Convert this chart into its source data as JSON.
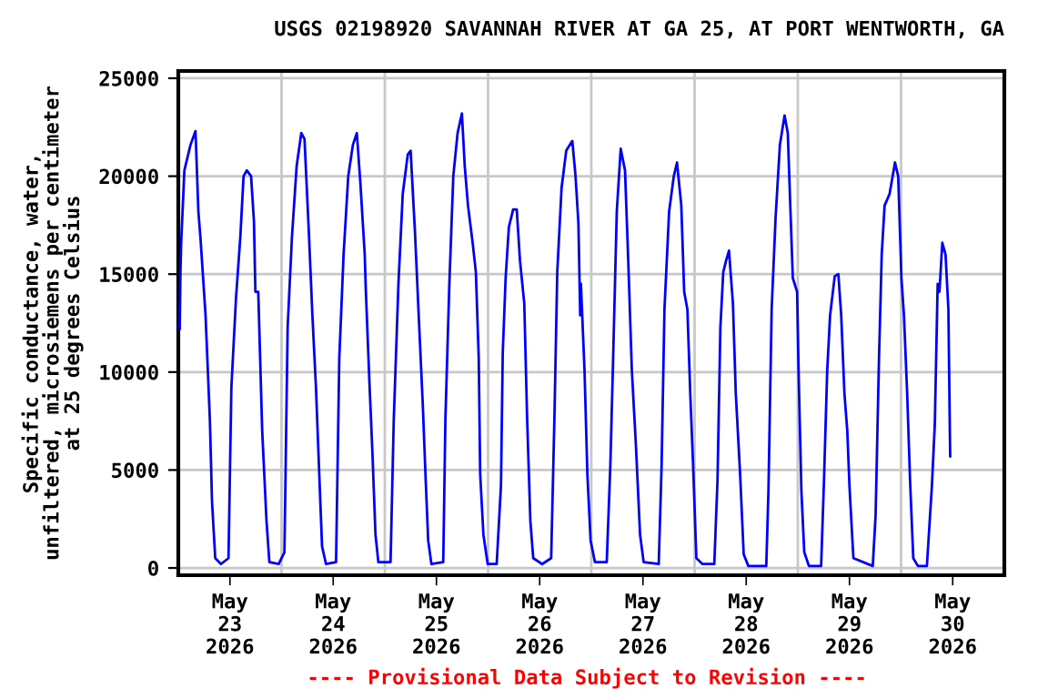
{
  "chart_data": {
    "type": "line",
    "title": "USGS 02198920 SAVANNAH RIVER AT GA 25, AT PORT WENTWORTH, GA",
    "ylabel": "Specific conductance, water,\nunfiltered, microsiemens per centimeter\nat 25 degrees Celsius",
    "annotations": [
      "---- Provisional Data Subject to Revision ----"
    ],
    "xlim": [
      "2026-05-23T00:00",
      "2026-05-31T00:00"
    ],
    "xticks": [
      {
        "value": "2026-05-23T12:00",
        "label": "May\n23\n2026"
      },
      {
        "value": "2026-05-24T12:00",
        "label": "May\n24\n2026"
      },
      {
        "value": "2026-05-25T12:00",
        "label": "May\n25\n2026"
      },
      {
        "value": "2026-05-26T12:00",
        "label": "May\n26\n2026"
      },
      {
        "value": "2026-05-27T12:00",
        "label": "May\n27\n2026"
      },
      {
        "value": "2026-05-28T12:00",
        "label": "May\n28\n2026"
      },
      {
        "value": "2026-05-29T12:00",
        "label": "May\n29\n2026"
      },
      {
        "value": "2026-05-30T12:00",
        "label": "May\n30\n2026"
      },
      {
        "value": "2026-05-24T00:00",
        "label": null
      },
      {
        "value": "2026-05-25T00:00",
        "label": null
      },
      {
        "value": "2026-05-26T00:00",
        "label": null
      },
      {
        "value": "2026-05-27T00:00",
        "label": null
      },
      {
        "value": "2026-05-28T00:00",
        "label": null
      },
      {
        "value": "2026-05-29T00:00",
        "label": null
      },
      {
        "value": "2026-05-30T00:00",
        "label": null
      }
    ],
    "ylim": [
      -370,
      25370
    ],
    "yticks": [
      0,
      5000,
      10000,
      15000,
      20000,
      25000
    ],
    "grid": true,
    "legend": false,
    "marker": "none",
    "line_style": "solid",
    "series": [
      {
        "color": "#0000ff",
        "x": [
          "2026-05-23T00:20",
          "2026-05-23T00:30",
          "2026-05-23T00:40",
          "2026-05-23T01:25",
          "2026-05-23T02:50",
          "2026-05-23T04:00",
          "2026-05-23T04:40",
          "2026-05-23T05:10",
          "2026-05-23T06:20",
          "2026-05-23T07:20",
          "2026-05-23T07:50",
          "2026-05-23T08:35",
          "2026-05-23T09:55",
          "2026-05-23T11:40",
          "2026-05-23T12:20",
          "2026-05-23T13:25",
          "2026-05-23T14:25",
          "2026-05-23T15:10",
          "2026-05-23T15:55",
          "2026-05-23T16:55",
          "2026-05-23T17:35",
          "2026-05-23T17:55",
          "2026-05-23T18:35",
          "2026-05-23T19:30",
          "2026-05-23T20:30",
          "2026-05-23T21:10",
          "2026-05-23T23:20",
          "2026-05-24T00:40",
          "2026-05-24T01:25",
          "2026-05-24T02:25",
          "2026-05-24T03:30",
          "2026-05-24T04:35",
          "2026-05-24T05:20",
          "2026-05-24T06:20",
          "2026-05-24T07:10",
          "2026-05-24T08:00",
          "2026-05-24T08:55",
          "2026-05-24T09:25",
          "2026-05-24T10:20",
          "2026-05-24T12:40",
          "2026-05-24T13:25",
          "2026-05-24T14:25",
          "2026-05-24T15:30",
          "2026-05-24T16:35",
          "2026-05-24T17:30",
          "2026-05-24T18:20",
          "2026-05-24T19:20",
          "2026-05-24T19:35",
          "2026-05-24T20:25",
          "2026-05-24T21:05",
          "2026-05-24T21:50",
          "2026-05-24T22:30",
          "2026-05-25T01:20",
          "2026-05-25T02:05",
          "2026-05-25T03:10",
          "2026-05-25T04:10",
          "2026-05-25T05:20",
          "2026-05-25T06:00",
          "2026-05-25T07:00",
          "2026-05-25T08:00",
          "2026-05-25T08:50",
          "2026-05-25T09:30",
          "2026-05-25T10:05",
          "2026-05-25T10:50",
          "2026-05-25T13:35",
          "2026-05-25T14:05",
          "2026-05-25T15:00",
          "2026-05-25T15:55",
          "2026-05-25T16:55",
          "2026-05-25T17:55",
          "2026-05-25T18:35",
          "2026-05-25T19:20",
          "2026-05-25T20:25",
          "2026-05-25T21:10",
          "2026-05-25T21:50",
          "2026-05-25T22:10",
          "2026-05-25T22:55",
          "2026-05-25T23:55",
          "2026-05-26T02:00",
          "2026-05-26T03:00",
          "2026-05-26T03:25",
          "2026-05-26T04:05",
          "2026-05-26T04:50",
          "2026-05-26T05:50",
          "2026-05-26T06:40",
          "2026-05-26T07:25",
          "2026-05-26T08:25",
          "2026-05-26T09:05",
          "2026-05-26T09:50",
          "2026-05-26T10:30",
          "2026-05-26T12:35",
          "2026-05-26T14:40",
          "2026-05-26T15:25",
          "2026-05-26T16:05",
          "2026-05-26T17:05",
          "2026-05-26T18:10",
          "2026-05-26T19:35",
          "2026-05-26T20:20",
          "2026-05-26T21:00",
          "2026-05-26T21:25",
          "2026-05-26T21:35",
          "2026-05-26T22:25",
          "2026-05-26T23:05",
          "2026-05-26T23:50",
          "2026-05-27T00:50",
          "2026-05-27T03:35",
          "2026-05-27T04:25",
          "2026-05-27T05:00",
          "2026-05-27T05:55",
          "2026-05-27T06:50",
          "2026-05-27T07:50",
          "2026-05-27T08:35",
          "2026-05-27T09:25",
          "2026-05-27T10:20",
          "2026-05-27T11:20",
          "2026-05-27T12:10",
          "2026-05-27T15:40",
          "2026-05-27T16:20",
          "2026-05-27T17:00",
          "2026-05-27T18:05",
          "2026-05-27T19:10",
          "2026-05-27T19:55",
          "2026-05-27T20:55",
          "2026-05-27T21:35",
          "2026-05-27T22:20",
          "2026-05-27T23:00",
          "2026-05-27T23:40",
          "2026-05-28T00:25",
          "2026-05-28T01:50",
          "2026-05-28T04:35",
          "2026-05-28T05:20",
          "2026-05-28T06:00",
          "2026-05-28T06:40",
          "2026-05-28T07:20",
          "2026-05-28T08:00",
          "2026-05-28T08:55",
          "2026-05-28T09:35",
          "2026-05-28T10:35",
          "2026-05-28T11:25",
          "2026-05-28T12:30",
          "2026-05-28T16:40",
          "2026-05-28T17:10",
          "2026-05-28T17:55",
          "2026-05-28T18:50",
          "2026-05-28T19:50",
          "2026-05-28T20:55",
          "2026-05-28T21:40",
          "2026-05-28T22:50",
          "2026-05-28T23:50",
          "2026-05-29T00:10",
          "2026-05-29T00:50",
          "2026-05-29T01:30",
          "2026-05-29T02:35",
          "2026-05-29T05:25",
          "2026-05-29T06:05",
          "2026-05-29T06:50",
          "2026-05-29T07:30",
          "2026-05-29T08:35",
          "2026-05-29T09:25",
          "2026-05-29T10:05",
          "2026-05-29T10:50",
          "2026-05-29T11:30",
          "2026-05-29T12:00",
          "2026-05-29T12:55",
          "2026-05-29T17:25",
          "2026-05-29T18:05",
          "2026-05-29T18:50",
          "2026-05-29T19:30",
          "2026-05-29T20:10",
          "2026-05-29T21:20",
          "2026-05-29T22:35",
          "2026-05-29T23:20",
          "2026-05-30T00:05",
          "2026-05-30T00:40",
          "2026-05-30T01:25",
          "2026-05-30T02:05",
          "2026-05-30T02:50",
          "2026-05-30T03:55",
          "2026-05-30T06:00",
          "2026-05-30T07:10",
          "2026-05-30T07:50",
          "2026-05-30T08:30",
          "2026-05-30T08:55",
          "2026-05-30T09:35",
          "2026-05-30T10:20",
          "2026-05-30T11:00",
          "2026-05-30T11:20",
          "2026-05-30T11:25"
        ],
        "values": [
          12200,
          15100,
          16600,
          20300,
          21600,
          22300,
          18200,
          16800,
          12900,
          7600,
          3400,
          500,
          200,
          500,
          9200,
          13800,
          16900,
          20000,
          20300,
          20000,
          17700,
          14100,
          14100,
          7000,
          2400,
          300,
          200,
          800,
          12300,
          16900,
          20500,
          22200,
          21900,
          17200,
          12900,
          9200,
          3900,
          1100,
          200,
          300,
          10700,
          16000,
          20000,
          21600,
          22200,
          19600,
          16000,
          14200,
          9500,
          6100,
          1700,
          300,
          300,
          7600,
          14500,
          19100,
          21100,
          21300,
          17200,
          12300,
          8300,
          4500,
          1400,
          200,
          300,
          7600,
          14500,
          20000,
          22200,
          23200,
          20500,
          18500,
          16600,
          15100,
          10700,
          4800,
          1700,
          200,
          200,
          4200,
          11000,
          14800,
          17400,
          18300,
          18300,
          15700,
          13500,
          7600,
          2400,
          500,
          200,
          500,
          7600,
          15100,
          19400,
          21300,
          21800,
          20000,
          17600,
          12900,
          14500,
          10100,
          4800,
          1400,
          300,
          300,
          5200,
          10100,
          18200,
          21400,
          20300,
          15700,
          10100,
          6400,
          1700,
          300,
          200,
          5200,
          13200,
          18200,
          20000,
          20700,
          18500,
          14100,
          13200,
          8900,
          5200,
          500,
          200,
          200,
          4500,
          12300,
          15100,
          15700,
          16200,
          13500,
          8900,
          4800,
          700,
          100,
          100,
          3900,
          13200,
          17900,
          21600,
          23100,
          22200,
          14800,
          14100,
          10100,
          3900,
          800,
          100,
          100,
          4500,
          10100,
          12900,
          14900,
          15000,
          12900,
          8900,
          7000,
          4200,
          500,
          100,
          2700,
          10400,
          16000,
          18500,
          19100,
          20700,
          20000,
          14800,
          12900,
          8900,
          4500,
          500,
          100,
          100,
          4200,
          7300,
          14500,
          14100,
          16600,
          16000,
          13200,
          7000,
          5700
        ]
      }
    ]
  }
}
